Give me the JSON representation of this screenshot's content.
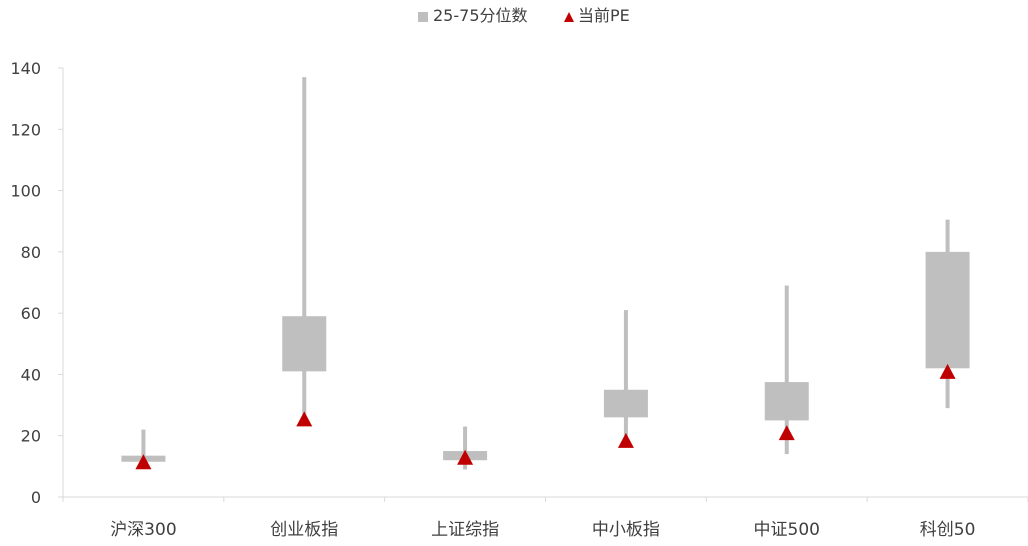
{
  "chart_data": {
    "type": "box",
    "categories": [
      "沪深300",
      "创业板指",
      "上证综指",
      "中小板指",
      "中证500",
      "科创50"
    ],
    "ylim": [
      0,
      140
    ],
    "yticks": [
      0,
      20,
      40,
      60,
      80,
      100,
      120,
      140
    ],
    "grid": false,
    "legend_position": "top-center",
    "legend": {
      "range_label": "25-75分位数",
      "current_label": "当前PE"
    },
    "series": [
      {
        "name": "25-75分位数",
        "role": "iqr",
        "color": "#bfbfbf",
        "whisker_low": [
          11,
          25,
          9,
          20,
          14,
          29
        ],
        "q25": [
          11.5,
          41,
          12,
          26,
          25,
          42
        ],
        "q75": [
          13.5,
          59,
          15,
          35,
          37.5,
          80
        ],
        "whisker_high": [
          22,
          137,
          23,
          61,
          69,
          90.5
        ]
      },
      {
        "name": "当前PE",
        "role": "current",
        "color": "#c00000",
        "values": [
          11,
          25,
          12.5,
          18,
          20.5,
          40.5
        ]
      }
    ]
  },
  "colors": {
    "axis": "#d9d9d9",
    "text": "#404040"
  }
}
